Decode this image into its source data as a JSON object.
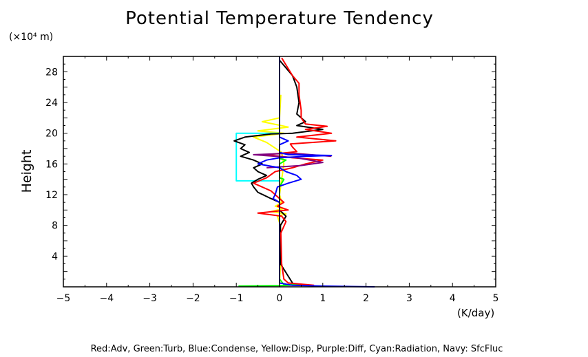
{
  "chart_data": {
    "type": "line",
    "title": "Potential Temperature Tendency",
    "xlabel": "(K/day)",
    "ylabel": "Height",
    "y_unit_label": "(×10⁴ m)",
    "xlim": [
      -5,
      5
    ],
    "ylim": [
      0,
      30
    ],
    "x_ticks": [
      -5,
      -4,
      -3,
      -2,
      -1,
      0,
      1,
      2,
      3,
      4,
      5
    ],
    "y_ticks": [
      4,
      8,
      12,
      16,
      20,
      24,
      28
    ],
    "legend_text": "Red:Adv, Green:Turb, Blue:Condense, Yellow:Disp, Purple:Diff, Cyan:Radiation, Navy: SfcFluc",
    "grid": false,
    "series": [
      {
        "color": "#ffff00",
        "points": [
          [
            0,
            0.5
          ],
          [
            0.03,
            4
          ],
          [
            0.02,
            8
          ],
          [
            -0.05,
            9.2
          ],
          [
            0.15,
            9.5
          ],
          [
            -0.2,
            9.8
          ],
          [
            0.1,
            10.2
          ],
          [
            -0.1,
            10.5
          ],
          [
            0.05,
            11
          ],
          [
            0,
            12
          ],
          [
            0.05,
            14
          ],
          [
            0.1,
            16
          ],
          [
            0.05,
            17.5
          ],
          [
            -0.3,
            18.8
          ],
          [
            -0.6,
            19.5
          ],
          [
            0.1,
            20
          ],
          [
            -0.5,
            20.3
          ],
          [
            0.2,
            20.8
          ],
          [
            -0.4,
            21.5
          ],
          [
            0,
            22
          ],
          [
            0.03,
            25
          ]
        ]
      },
      {
        "color": "#00ffff",
        "points": [
          [
            0,
            13.8
          ],
          [
            -1,
            13.8
          ],
          [
            -1,
            20
          ],
          [
            0,
            20
          ]
        ]
      },
      {
        "color": "#00ff00",
        "points": [
          [
            -0.95,
            0.1
          ],
          [
            0,
            0.15
          ],
          [
            0.5,
            0.25
          ],
          [
            0.1,
            0.3
          ],
          [
            0,
            1
          ],
          [
            0,
            13
          ],
          [
            0.1,
            14
          ],
          [
            0,
            14.2
          ],
          [
            0,
            16
          ],
          [
            0.15,
            16.5
          ],
          [
            0,
            16.7
          ],
          [
            0,
            17
          ]
        ]
      },
      {
        "color": "#000000",
        "points": [
          [
            0.3,
            0.5
          ],
          [
            0.02,
            3
          ],
          [
            0.02,
            8
          ],
          [
            0.15,
            9.2
          ],
          [
            0,
            10
          ],
          [
            0,
            11
          ],
          [
            -0.2,
            11.5
          ],
          [
            -0.5,
            12.3
          ],
          [
            -0.6,
            13
          ],
          [
            -0.65,
            13.5
          ],
          [
            -0.5,
            14
          ],
          [
            -0.3,
            14.5
          ],
          [
            -0.5,
            15
          ],
          [
            -0.6,
            15.5
          ],
          [
            -0.4,
            16
          ],
          [
            -0.6,
            16.5
          ],
          [
            -0.9,
            17
          ],
          [
            -0.7,
            17.5
          ],
          [
            -0.9,
            18
          ],
          [
            -0.8,
            18.5
          ],
          [
            -1.05,
            19
          ],
          [
            -0.8,
            19.5
          ],
          [
            -0.2,
            19.9
          ],
          [
            0.3,
            20
          ],
          [
            1.0,
            20.5
          ],
          [
            0.4,
            21
          ],
          [
            0.6,
            21.5
          ],
          [
            0.5,
            22
          ],
          [
            0.4,
            22.5
          ],
          [
            0.45,
            24
          ],
          [
            0.4,
            26
          ],
          [
            0.3,
            27.5
          ],
          [
            0,
            29.5
          ]
        ]
      },
      {
        "color": "#ff0000",
        "points": [
          [
            0.8,
            0.2
          ],
          [
            0.2,
            0.5
          ],
          [
            0.1,
            1
          ],
          [
            0.05,
            3
          ],
          [
            0.03,
            7
          ],
          [
            0.15,
            8.5
          ],
          [
            0.05,
            9.2
          ],
          [
            -0.5,
            9.6
          ],
          [
            0.2,
            10
          ],
          [
            -0.05,
            10.5
          ],
          [
            0.1,
            11
          ],
          [
            0,
            11.5
          ],
          [
            -0.2,
            12.5
          ],
          [
            -0.6,
            13.5
          ],
          [
            -0.3,
            14.2
          ],
          [
            -0.1,
            15
          ],
          [
            0.3,
            15.5
          ],
          [
            0.6,
            16
          ],
          [
            1.0,
            16.5
          ],
          [
            0.3,
            16.8
          ],
          [
            -0.3,
            17.2
          ],
          [
            0.4,
            17.6
          ],
          [
            0.3,
            18.2
          ],
          [
            0.25,
            18.6
          ],
          [
            1.3,
            19
          ],
          [
            0.4,
            19.5
          ],
          [
            1.2,
            20
          ],
          [
            0.6,
            20.5
          ],
          [
            1.1,
            20.9
          ],
          [
            0.6,
            21.2
          ],
          [
            0.5,
            22
          ],
          [
            0.5,
            23
          ],
          [
            0.45,
            25
          ],
          [
            0.45,
            26.5
          ],
          [
            0.3,
            27.5
          ],
          [
            0.05,
            29.8
          ]
        ]
      },
      {
        "color": "#800080",
        "points": [
          [
            -0.3,
            15.5
          ],
          [
            0.5,
            15.8
          ],
          [
            1.0,
            16.2
          ],
          [
            0.4,
            16.8
          ],
          [
            -0.6,
            17.2
          ],
          [
            0.3,
            17.4
          ],
          [
            1.2,
            17
          ]
        ]
      },
      {
        "color": "#0000ff",
        "points": [
          [
            2.2,
            0
          ],
          [
            1.0,
            0.1
          ],
          [
            0.3,
            0.2
          ],
          [
            0,
            0.5
          ],
          [
            0,
            8
          ],
          [
            0,
            11
          ],
          [
            -0.15,
            11.5
          ],
          [
            -0.1,
            12
          ],
          [
            -0.05,
            13
          ],
          [
            0.2,
            13.5
          ],
          [
            0.5,
            14
          ],
          [
            0.4,
            14.5
          ],
          [
            0.15,
            15
          ],
          [
            0,
            15.5
          ],
          [
            -0.5,
            16
          ],
          [
            -0.3,
            16.5
          ],
          [
            0,
            16.8
          ],
          [
            0.6,
            17
          ],
          [
            1.2,
            17.1
          ],
          [
            0.2,
            17.2
          ],
          [
            0,
            17.5
          ],
          [
            0,
            18.5
          ],
          [
            0.2,
            19
          ],
          [
            0,
            19.5
          ],
          [
            0,
            30
          ]
        ]
      }
    ]
  }
}
